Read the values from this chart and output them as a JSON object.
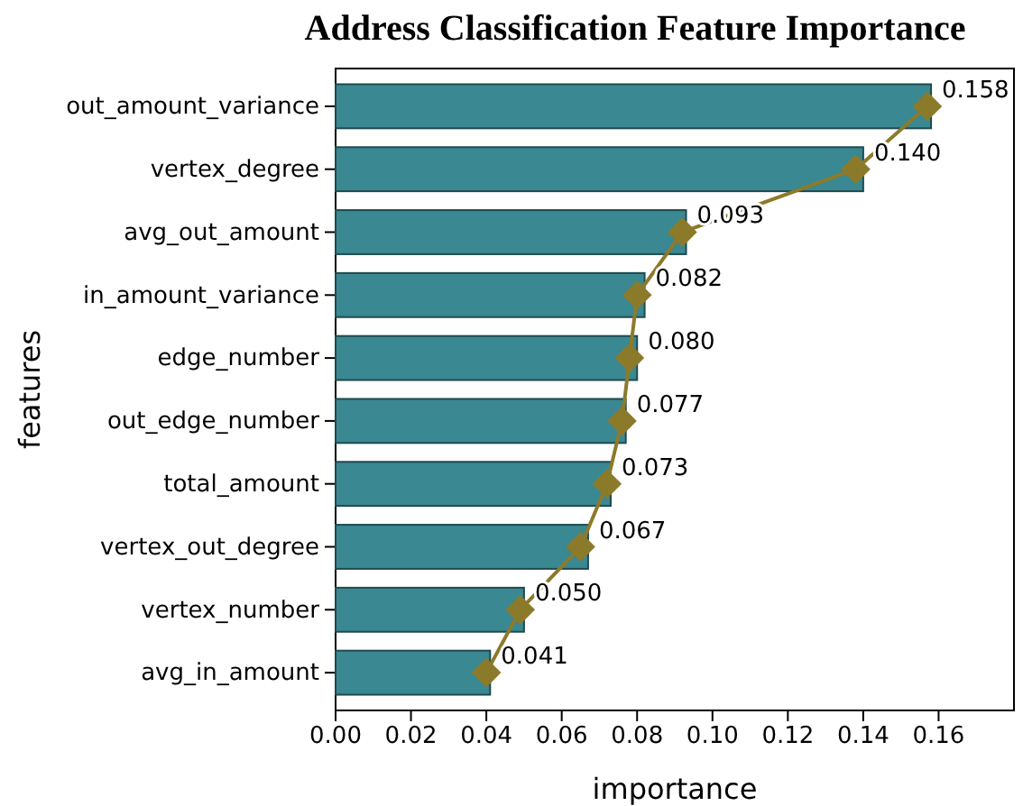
{
  "chart_data": {
    "type": "bar",
    "orientation": "horizontal",
    "title": "Address Classification Feature Importance",
    "xlabel": "importance",
    "ylabel": "features",
    "categories": [
      "out_amount_variance",
      "vertex_degree",
      "avg_out_amount",
      "in_amount_variance",
      "edge_number",
      "out_edge_number",
      "total_amount",
      "vertex_out_degree",
      "vertex_number",
      "avg_in_amount"
    ],
    "series": [
      {
        "color": "#3a8891",
        "values": [
          0.158,
          0.14,
          0.093,
          0.082,
          0.08,
          0.077,
          0.073,
          0.067,
          0.05,
          0.041
        ],
        "value_labels": [
          "0.158",
          "0.140",
          "0.093",
          "0.082",
          "0.080",
          "0.077",
          "0.073",
          "0.067",
          "0.050",
          "0.041"
        ]
      },
      {
        "type": "line",
        "color": "#8c7a2b",
        "marker": "diamond",
        "line_style": "solid",
        "values": [
          0.157,
          0.138,
          0.092,
          0.08,
          0.078,
          0.076,
          0.072,
          0.065,
          0.049,
          0.04
        ]
      }
    ],
    "xlim": [
      0,
      0.18
    ],
    "xticks": [
      {
        "value": 0,
        "label": "0.00"
      },
      {
        "value": 0.02,
        "label": "0.02"
      },
      {
        "value": 0.04,
        "label": "0.04"
      },
      {
        "value": 0.06,
        "label": "0.06"
      },
      {
        "value": 0.08,
        "label": "0.08"
      },
      {
        "value": 0.1,
        "label": "0.10"
      },
      {
        "value": 0.12,
        "label": "0.12"
      },
      {
        "value": 0.14,
        "label": "0.14"
      },
      {
        "value": 0.16,
        "label": "0.16"
      }
    ],
    "grid": false
  }
}
